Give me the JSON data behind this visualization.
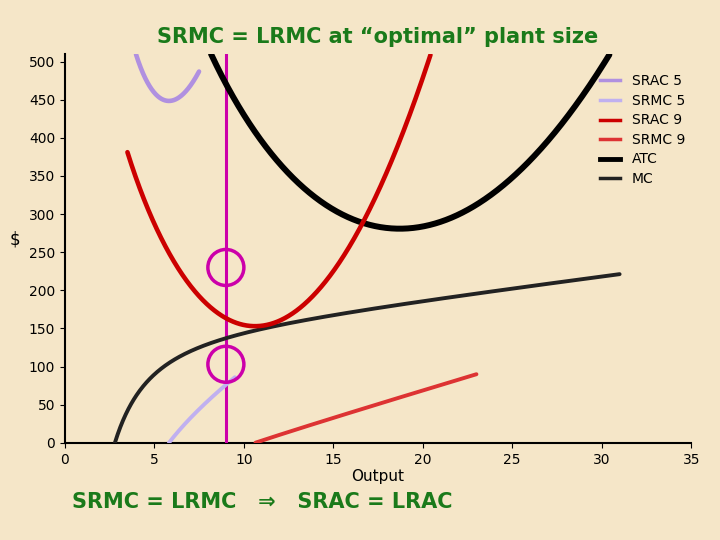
{
  "title": "SRMC = LRMC at “optimal” plant size",
  "xlabel": "Output",
  "ylabel": "$",
  "xlim": [
    0,
    35
  ],
  "ylim": [
    0,
    510
  ],
  "xticks": [
    0,
    5,
    10,
    15,
    20,
    25,
    30,
    35
  ],
  "yticks": [
    0,
    50,
    100,
    150,
    200,
    250,
    300,
    350,
    400,
    450,
    500
  ],
  "background_color": "#f5e6c8",
  "title_color": "#1a7a1a",
  "bottom_text": "SRMC = LRMC   ⇒   SRAC = LRAC",
  "vline_x": 9,
  "circle1": [
    9,
    230
  ],
  "circle2": [
    9,
    103
  ],
  "circle_r": 15,
  "colors": {
    "srac5": "#b090e0",
    "srmc5": "#c0b0f0",
    "srac9": "#cc0000",
    "srmc9": "#dd3333",
    "atc": "#000000",
    "mc": "#222222",
    "vline": "#cc00aa",
    "circle": "#cc00aa"
  }
}
